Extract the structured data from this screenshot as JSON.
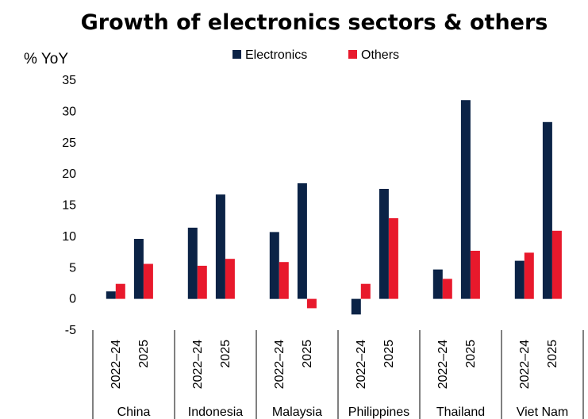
{
  "chart_data": {
    "type": "bar",
    "title": "Growth of electronics sectors & others",
    "ylabel": "% YoY",
    "xlabel": "",
    "ylim": [
      -5,
      35
    ],
    "yticks": [
      35,
      30,
      25,
      20,
      15,
      10,
      5,
      0,
      -5
    ],
    "periods": [
      "2022–24",
      "2025"
    ],
    "categories": [
      "China",
      "Indonesia",
      "Malaysia",
      "Philippines",
      "Thailand",
      "Viet Nam"
    ],
    "legend_position": "top-center",
    "grid": false,
    "series": [
      {
        "name": "Electronics",
        "color": "#0b2346",
        "values": [
          [
            1.2,
            9.6
          ],
          [
            11.4,
            16.7
          ],
          [
            10.7,
            18.5
          ],
          [
            -2.5,
            17.6
          ],
          [
            4.7,
            31.8
          ],
          [
            6.1,
            28.3
          ]
        ]
      },
      {
        "name": "Others",
        "color": "#e8192c",
        "values": [
          [
            2.4,
            5.6
          ],
          [
            5.3,
            6.4
          ],
          [
            5.9,
            -1.5
          ],
          [
            2.4,
            12.9
          ],
          [
            3.2,
            7.7
          ],
          [
            7.4,
            10.9
          ]
        ]
      }
    ]
  }
}
